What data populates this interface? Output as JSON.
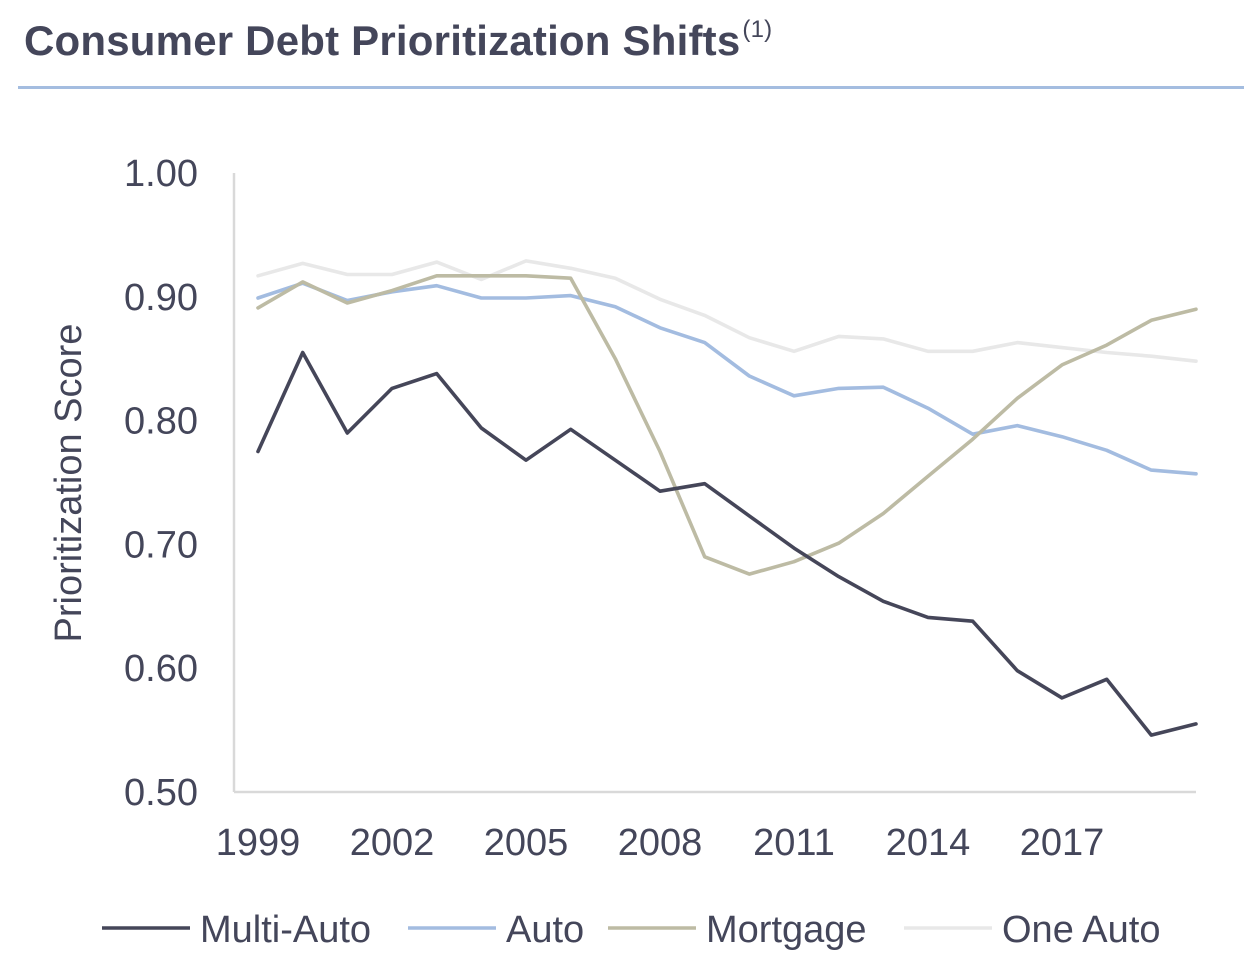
{
  "header": {
    "title": "Consumer Debt Prioritization Shifts",
    "footnote_marker": "(1)"
  },
  "chart_data": {
    "type": "line",
    "title": "Consumer Debt Prioritization Shifts",
    "xlabel": "",
    "ylabel": "Prioritization Score",
    "x": [
      1999,
      2000,
      2001,
      2002,
      2003,
      2004,
      2005,
      2006,
      2007,
      2008,
      2009,
      2010,
      2011,
      2012,
      2013,
      2014,
      2015,
      2016,
      2017,
      2018,
      2019,
      2020
    ],
    "x_ticks": [
      "1999",
      "2002",
      "2005",
      "2008",
      "2011",
      "2014",
      "2017"
    ],
    "y_ticks": [
      "1.00",
      "0.90",
      "0.80",
      "0.70",
      "0.60",
      "0.50"
    ],
    "ylim": [
      0.5,
      1.0
    ],
    "legend_position": "bottom",
    "series": [
      {
        "name": "Multi-Auto",
        "color": "#454659",
        "values": [
          0.775,
          0.855,
          0.79,
          0.826,
          0.838,
          0.794,
          0.768,
          0.793,
          0.768,
          0.743,
          0.749,
          0.723,
          0.697,
          0.674,
          0.654,
          0.641,
          0.638,
          0.598,
          0.576,
          0.591,
          0.546,
          0.555
        ]
      },
      {
        "name": "Auto",
        "color": "#a3bce0",
        "values": [
          0.899,
          0.911,
          0.897,
          0.904,
          0.909,
          0.899,
          0.899,
          0.901,
          0.892,
          0.875,
          0.863,
          0.836,
          0.82,
          0.826,
          0.827,
          0.81,
          0.789,
          0.796,
          0.787,
          0.776,
          0.76,
          0.757
        ]
      },
      {
        "name": "Mortgage",
        "color": "#bdbba4",
        "values": [
          0.891,
          0.912,
          0.895,
          0.905,
          0.917,
          0.917,
          0.917,
          0.915,
          0.85,
          0.775,
          0.69,
          0.676,
          0.686,
          0.701,
          0.725,
          0.755,
          0.785,
          0.818,
          0.845,
          0.861,
          0.881,
          0.89
        ]
      },
      {
        "name": "One Auto",
        "color": "#e8e8e8",
        "values": [
          0.917,
          0.927,
          0.918,
          0.918,
          0.928,
          0.914,
          0.929,
          0.923,
          0.915,
          0.898,
          0.885,
          0.867,
          0.856,
          0.868,
          0.866,
          0.856,
          0.856,
          0.863,
          0.859,
          0.855,
          0.852,
          0.848
        ]
      }
    ]
  }
}
